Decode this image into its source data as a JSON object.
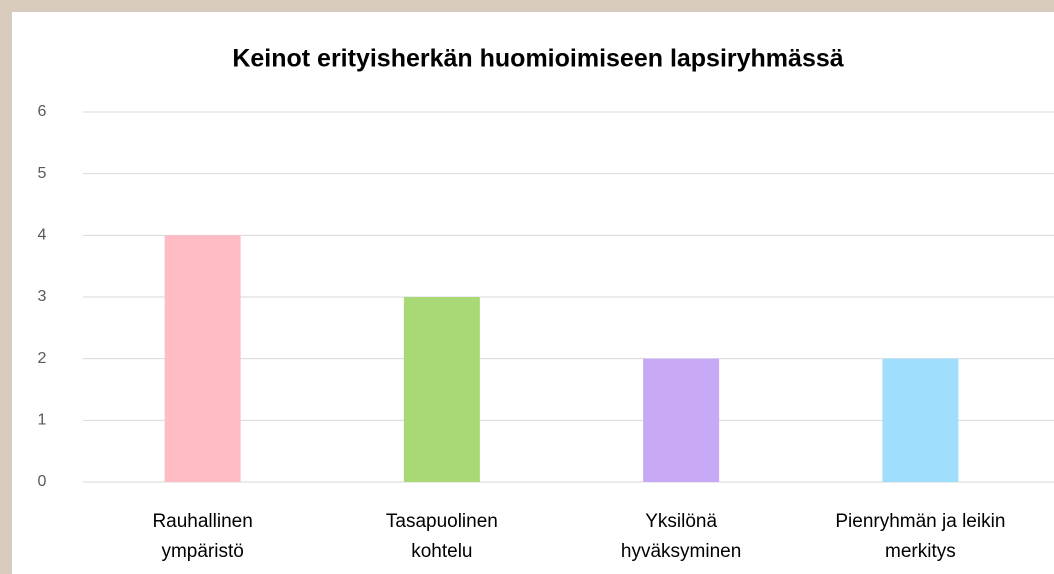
{
  "chart_data": {
    "type": "bar",
    "title": "Keinot erityisherkän huomioimiseen lapsiryhmässä",
    "categories": [
      [
        "Rauhallinen",
        "ympäristö"
      ],
      [
        "Tasapuolinen",
        "kohtelu"
      ],
      [
        "Yksilönä",
        "hyväksyminen"
      ],
      [
        "Pienryhmän ja leikin",
        "merkitys"
      ]
    ],
    "values": [
      4,
      3,
      2,
      2
    ],
    "colors": [
      "#ffbcc4",
      "#a9d977",
      "#c8a9f5",
      "#a0defd"
    ],
    "ylim": [
      0,
      6
    ],
    "yticks": [
      0,
      1,
      2,
      3,
      4,
      5,
      6
    ],
    "grid": true
  }
}
